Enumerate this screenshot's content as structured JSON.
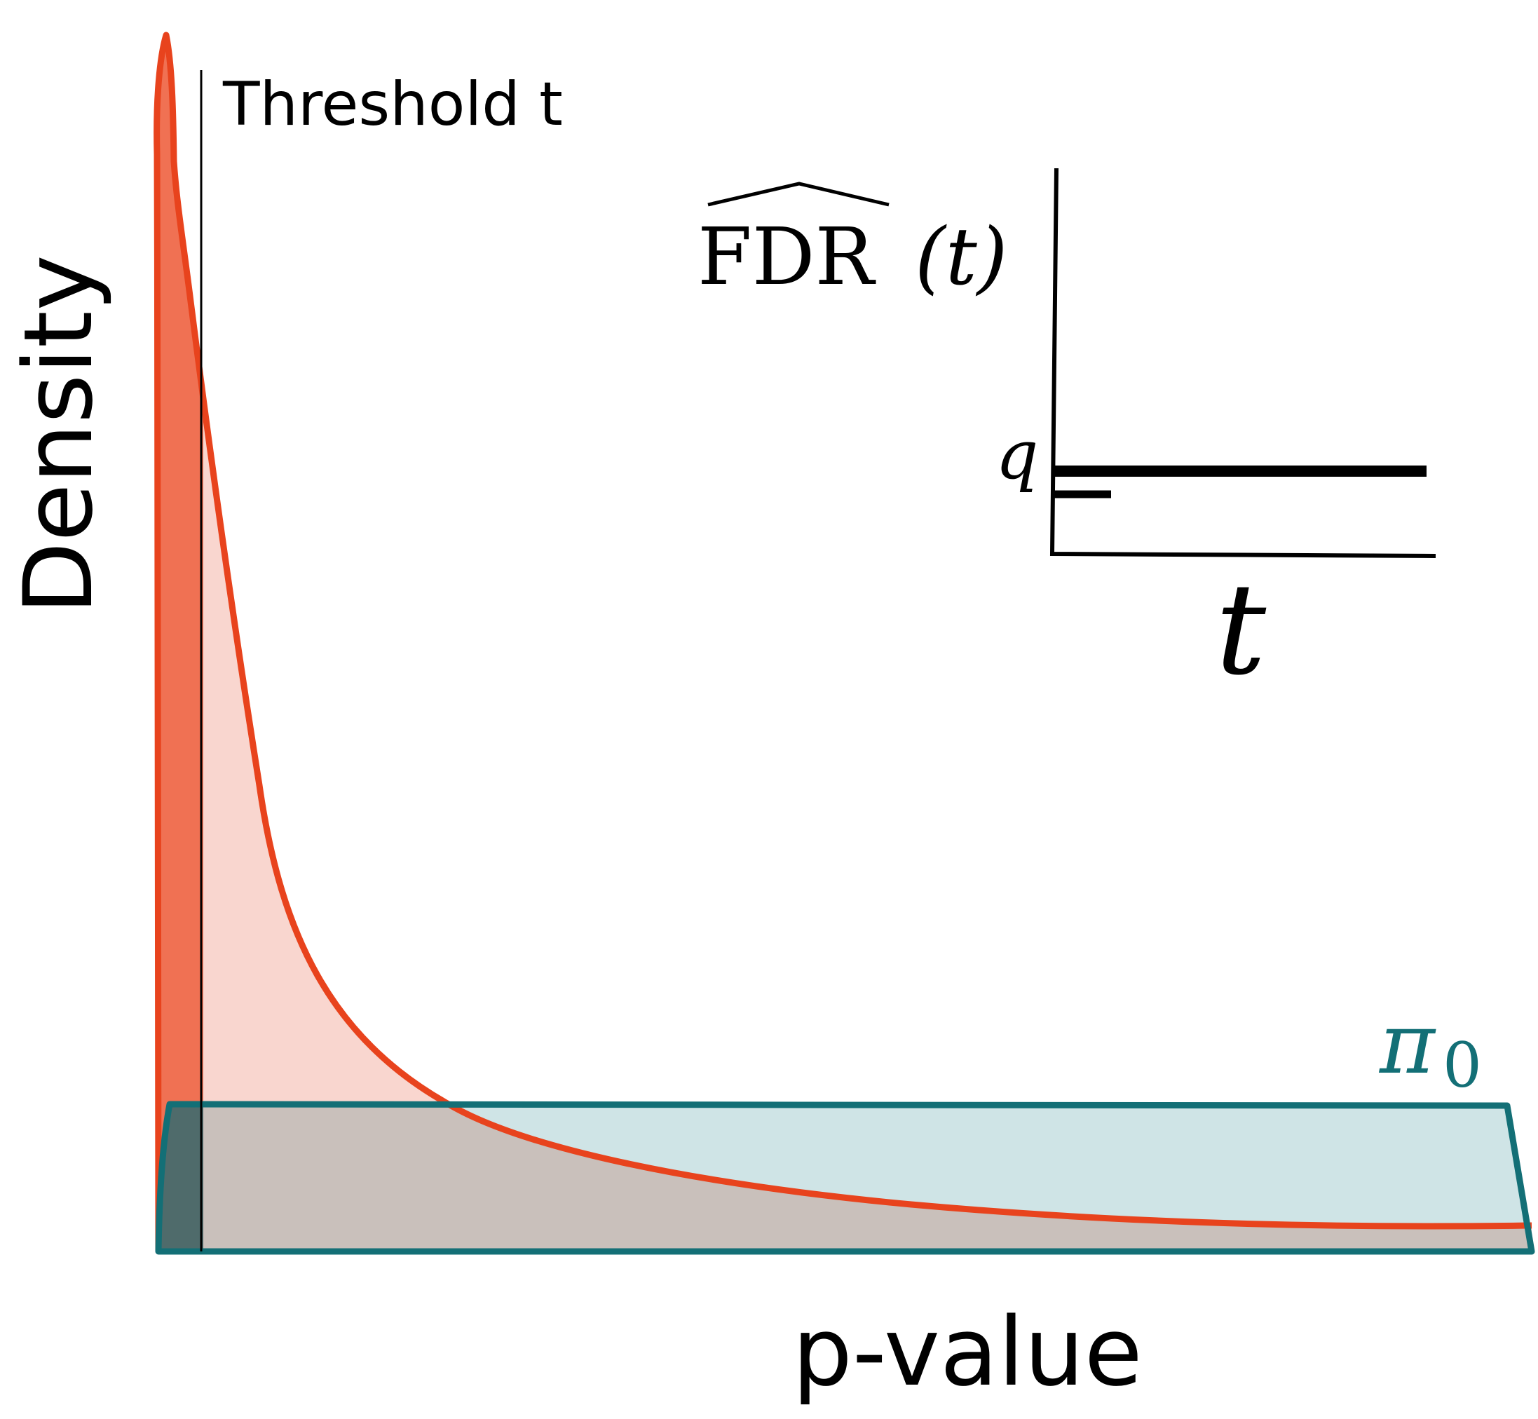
{
  "labels": {
    "y_axis": "Density",
    "x_axis": "p-value",
    "threshold": "Threshold t",
    "pi0": "π",
    "pi0_sub": "0",
    "fdr_label": "FDR",
    "fdr_arg": "(t)",
    "inset_y_tick": "q",
    "inset_x": "t"
  },
  "colors": {
    "alt_curve": "#e8431d",
    "alt_fill_light": "#f9d6cf",
    "alt_fill_dark": "#f07153",
    "null_outline": "#136f76",
    "null_fill": "#cfe4e6",
    "overlap_fill": "#c9c0bb",
    "overlap_dark": "#4f6b6b",
    "ink": "#000000"
  }
}
